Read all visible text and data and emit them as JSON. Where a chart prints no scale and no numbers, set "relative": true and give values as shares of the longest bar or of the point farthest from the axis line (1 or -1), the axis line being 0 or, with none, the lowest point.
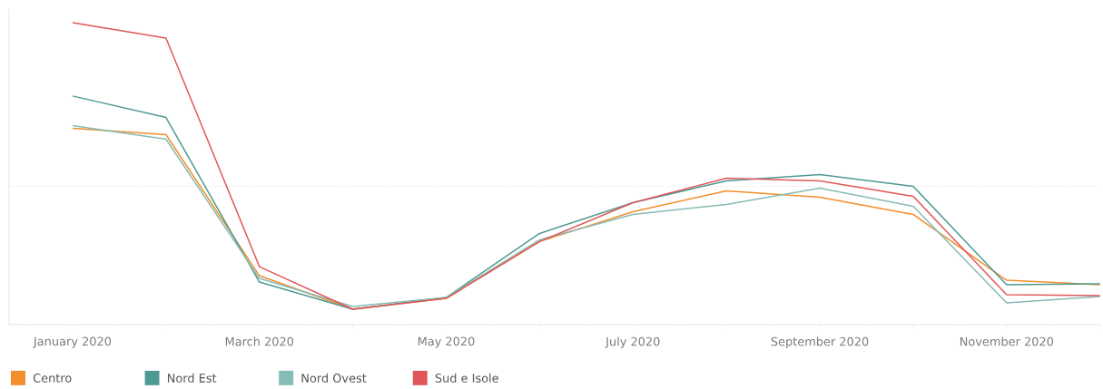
{
  "chart_data": {
    "type": "line",
    "relative": true,
    "categories": [
      "January 2020",
      null,
      "March 2020",
      null,
      "May 2020",
      null,
      "July 2020",
      null,
      "September 2020",
      null,
      "November 2020",
      null
    ],
    "series": [
      {
        "name": "Centro",
        "color": "#f28e2b",
        "values": [
          0.65,
          0.629,
          0.162,
          0.051,
          0.087,
          0.275,
          0.374,
          0.443,
          0.422,
          0.365,
          0.147,
          0.132
        ]
      },
      {
        "name": "Nord Est",
        "color": "#4e9a92",
        "values": [
          0.757,
          0.686,
          0.141,
          0.051,
          0.09,
          0.302,
          0.404,
          0.476,
          0.497,
          0.458,
          0.132,
          0.135
        ]
      },
      {
        "name": "Nord Ovest",
        "color": "#86bcb6",
        "values": [
          0.659,
          0.614,
          0.153,
          0.06,
          0.09,
          0.281,
          0.365,
          0.398,
          0.452,
          0.392,
          0.072,
          0.093
        ]
      },
      {
        "name": "Sud e Isole",
        "color": "#e15759",
        "values": [
          1.0,
          0.949,
          0.192,
          0.051,
          0.087,
          0.275,
          0.404,
          0.485,
          0.476,
          0.425,
          0.099,
          0.096
        ]
      }
    ],
    "ref_lines": [
      {
        "axis": "y",
        "value": 0.458,
        "color": "#d0d0d0",
        "line_style": "dotted"
      }
    ],
    "legend": "bottom",
    "marker": "none",
    "line_style": "solid",
    "grid": false
  }
}
